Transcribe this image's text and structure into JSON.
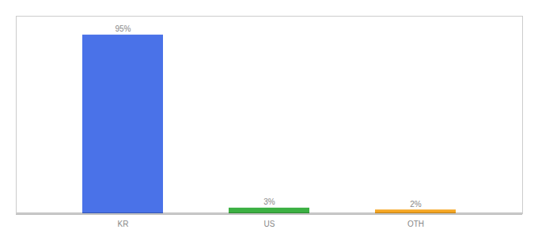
{
  "chart_data": {
    "type": "bar",
    "categories": [
      "KR",
      "US",
      "OTH"
    ],
    "values": [
      95,
      3,
      2
    ],
    "value_labels": [
      "95%",
      "3%",
      "2%"
    ],
    "data_labels": true,
    "colors": [
      "#4a72e8",
      "#3cb043",
      "#f5a623"
    ],
    "ylim": [
      0,
      105
    ],
    "tick_labels": "x"
  }
}
